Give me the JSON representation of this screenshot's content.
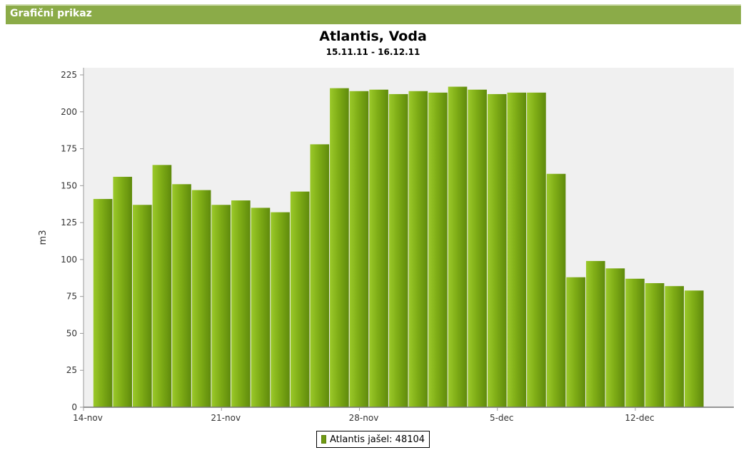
{
  "panel": {
    "title": "Grafični prikaz"
  },
  "colors": {
    "header": "#8bab48",
    "bar": "#7fad16",
    "plot_bg": "#f0f0f0"
  },
  "chart_data": {
    "type": "bar",
    "title": "Atlantis, Voda",
    "subtitle": "15.11.11 - 16.12.11",
    "xlabel": "",
    "ylabel": "m3",
    "ylim": [
      0,
      225
    ],
    "yticks": [
      0,
      25,
      50,
      75,
      100,
      125,
      150,
      175,
      200,
      225
    ],
    "xaxis": {
      "type": "date",
      "range": [
        "2011-11-14",
        "2011-12-17"
      ],
      "ticks": [
        {
          "date": "2011-11-14",
          "label": "14-nov"
        },
        {
          "date": "2011-11-21",
          "label": "21-nov"
        },
        {
          "date": "2011-11-28",
          "label": "28-nov"
        },
        {
          "date": "2011-12-05",
          "label": "5-dec"
        },
        {
          "date": "2011-12-12",
          "label": "12-dec"
        }
      ]
    },
    "grid": false,
    "legend_position": "bottom",
    "series": [
      {
        "name": "Atlantis jašel: 48104",
        "x": [
          "2011-11-15",
          "2011-11-16",
          "2011-11-17",
          "2011-11-18",
          "2011-11-19",
          "2011-11-20",
          "2011-11-21",
          "2011-11-22",
          "2011-11-23",
          "2011-11-24",
          "2011-11-25",
          "2011-11-26",
          "2011-11-27",
          "2011-11-28",
          "2011-11-29",
          "2011-11-30",
          "2011-12-01",
          "2011-12-02",
          "2011-12-03",
          "2011-12-04",
          "2011-12-05",
          "2011-12-06",
          "2011-12-07",
          "2011-12-08",
          "2011-12-09",
          "2011-12-10",
          "2011-12-11",
          "2011-12-12",
          "2011-12-13",
          "2011-12-14",
          "2011-12-15",
          "2011-12-16"
        ],
        "values": [
          141,
          156,
          137,
          164,
          151,
          147,
          137,
          140,
          135,
          132,
          146,
          178,
          216,
          214,
          215,
          212,
          214,
          213,
          217,
          215,
          212,
          213,
          213,
          158,
          88,
          99,
          94,
          87,
          84,
          82,
          79,
          0
        ]
      }
    ]
  }
}
